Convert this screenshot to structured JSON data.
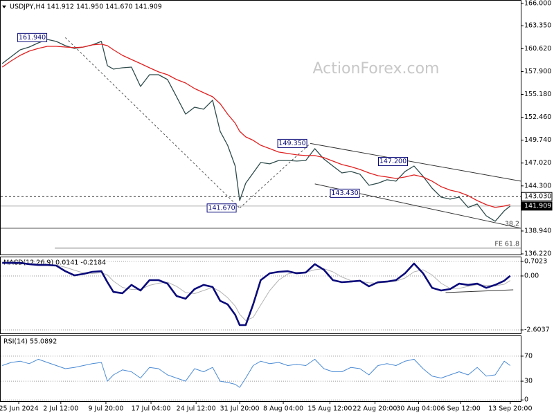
{
  "chart_data": [
    {
      "type": "line",
      "title": "USDJPY,H4  141.912 141.950 141.670 141.909",
      "watermark": "ActionForex.com",
      "x": [
        1,
        7,
        13,
        19,
        25,
        31,
        37,
        43,
        49,
        55,
        61,
        67,
        71,
        75,
        81,
        87,
        93,
        99,
        105,
        111,
        117,
        123,
        129,
        135,
        141,
        146,
        151,
        156,
        159,
        163,
        168,
        173,
        179,
        185,
        191,
        197,
        203,
        209,
        215,
        221,
        227,
        233,
        239,
        245,
        251,
        257,
        263,
        269,
        275,
        281,
        287,
        293,
        299,
        305,
        311,
        317,
        323,
        329,
        335,
        339
      ],
      "xlim": [
        0,
        346
      ],
      "ylim": [
        136.14,
        166.41
      ],
      "yticks": [
        {
          "value": 166,
          "label": "166.000"
        },
        {
          "value": 163.35,
          "label": "163.350"
        },
        {
          "value": 160.62,
          "label": "160.620"
        },
        {
          "value": 157.9,
          "label": "157.900"
        },
        {
          "value": 155.18,
          "label": "155.180"
        },
        {
          "value": 152.46,
          "label": "152.460"
        },
        {
          "value": 149.74,
          "label": "149.740"
        },
        {
          "value": 147.02,
          "label": "147.020"
        },
        {
          "value": 144.3,
          "label": "144.300"
        },
        {
          "value": 138.94,
          "label": "138.940"
        },
        {
          "value": 136.22,
          "label": "136.220"
        }
      ],
      "series": [
        {
          "color": "#2e4a4a",
          "width": 1.3,
          "values": [
            158.85,
            159.67,
            160.49,
            160.82,
            161.31,
            161.72,
            161.48,
            160.98,
            160.65,
            160.82,
            161.07,
            161.48,
            158.6,
            158.19,
            158.35,
            158.43,
            156.13,
            157.53,
            157.53,
            156.95,
            154.9,
            152.84,
            153.66,
            153.42,
            154.49,
            150.79,
            149.14,
            146.67,
            142.56,
            144.62,
            145.85,
            147.09,
            146.92,
            147.33,
            147.33,
            147.25,
            147.33,
            148.73,
            147.5,
            146.67,
            145.85,
            146.02,
            145.69,
            144.37,
            144.62,
            145.03,
            144.87,
            146.02,
            146.67,
            145.44,
            144.04,
            142.97,
            142.73,
            142.97,
            141.74,
            142.15,
            140.75,
            140.1,
            141.33,
            141.91
          ]
        },
        {
          "color": "#e02020",
          "width": 1.3,
          "values": [
            158.43,
            159.17,
            159.83,
            160.33,
            160.65,
            160.9,
            160.9,
            160.82,
            160.74,
            160.82,
            161.07,
            161.15,
            160.98,
            160.49,
            159.83,
            159.34,
            158.85,
            158.35,
            157.86,
            157.53,
            156.95,
            156.54,
            155.88,
            155.39,
            154.9,
            154.08,
            152.84,
            151.77,
            150.79,
            150.13,
            149.72,
            149.14,
            148.73,
            148.32,
            148.16,
            147.99,
            147.91,
            147.91,
            147.66,
            147.25,
            146.84,
            146.59,
            146.26,
            145.85,
            145.52,
            145.36,
            145.19,
            145.36,
            145.61,
            145.36,
            144.87,
            144.21,
            143.8,
            143.55,
            143.14,
            142.56,
            142.07,
            141.74,
            141.91,
            142.07
          ]
        }
      ],
      "annotations": [
        {
          "x": 21,
          "value": 161.94,
          "label": "161.940"
        },
        {
          "x": 147,
          "value": 141.67,
          "label": "141.670"
        },
        {
          "x": 194,
          "value": 149.35,
          "label": "149.350"
        },
        {
          "x": 261,
          "value": 147.2,
          "label": "147.200"
        },
        {
          "x": 229,
          "value": 143.43,
          "label": "143.430"
        }
      ],
      "levels": [
        {
          "value": 143.03,
          "label": "143.030",
          "tag": "box",
          "dash": true,
          "color": "#333333"
        },
        {
          "value": 141.909,
          "label": "141.909",
          "tag": "dark",
          "color": "#b0b0b0"
        },
        {
          "value": 139.27,
          "label": "38.2",
          "color": "#555555"
        },
        {
          "from": 36,
          "value": 136.9,
          "label": "FE 61.8",
          "color": "#777777"
        }
      ],
      "trendlines": [
        {
          "x": [
            43,
            159
          ],
          "y": [
            161.94,
            141.67
          ],
          "dash": true
        },
        {
          "x": [
            159,
            206
          ],
          "y": [
            141.67,
            149.35
          ],
          "dash": true
        },
        {
          "x": [
            206,
            346
          ],
          "y": [
            149.35,
            144.87
          ]
        },
        {
          "x": [
            209,
            346
          ],
          "y": [
            144.54,
            139.27
          ]
        }
      ]
    },
    {
      "type": "line",
      "title": "MACD(12,26,9) 0.0141 -0.2184",
      "x": [
        1,
        7,
        13,
        19,
        25,
        31,
        37,
        43,
        49,
        55,
        61,
        67,
        71,
        75,
        81,
        87,
        93,
        99,
        105,
        111,
        117,
        123,
        129,
        135,
        141,
        146,
        151,
        156,
        159,
        163,
        168,
        173,
        179,
        185,
        191,
        197,
        203,
        209,
        215,
        221,
        227,
        233,
        239,
        245,
        251,
        257,
        263,
        269,
        275,
        281,
        287,
        293,
        299,
        305,
        311,
        317,
        323,
        329,
        335,
        339
      ],
      "xlim": [
        0,
        346
      ],
      "ylim": [
        -2.77,
        0.9
      ],
      "grid": true,
      "yticks": [
        0.7023,
        {
          "value": 0,
          "label": "0.00"
        },
        -2.6037
      ],
      "series": [
        {
          "color": "#b4b4b4",
          "width": 1,
          "values": [
            0.63,
            0.63,
            0.63,
            0.61,
            0.58,
            0.55,
            0.52,
            0.42,
            0.28,
            0.15,
            0.12,
            0.16,
            0.05,
            -0.25,
            -0.55,
            -0.65,
            -0.65,
            -0.45,
            -0.35,
            -0.3,
            -0.5,
            -0.8,
            -0.85,
            -0.7,
            -0.55,
            -0.75,
            -1.05,
            -1.45,
            -1.85,
            -2.15,
            -2.0,
            -1.4,
            -0.7,
            -0.2,
            0.1,
            0.18,
            0.18,
            0.3,
            0.35,
            0.2,
            -0.05,
            -0.22,
            -0.26,
            -0.33,
            -0.35,
            -0.3,
            -0.25,
            -0.1,
            0.2,
            0.3,
            0.05,
            -0.35,
            -0.6,
            -0.6,
            -0.5,
            -0.42,
            -0.45,
            -0.47,
            -0.4,
            -0.22
          ]
        },
        {
          "color": "#0a0a7a",
          "width": 2.6,
          "values": [
            0.63,
            0.63,
            0.63,
            0.57,
            0.53,
            0.53,
            0.5,
            0.23,
            0.03,
            0.1,
            0.2,
            0.23,
            -0.3,
            -0.77,
            -0.83,
            -0.43,
            -0.7,
            -0.2,
            -0.2,
            -0.37,
            -0.97,
            -1.1,
            -0.63,
            -0.43,
            -0.53,
            -1.2,
            -1.37,
            -1.87,
            -2.37,
            -2.37,
            -1.37,
            -0.2,
            0.13,
            0.2,
            0.23,
            0.13,
            0.17,
            0.57,
            0.3,
            -0.2,
            -0.3,
            -0.27,
            -0.23,
            -0.5,
            -0.3,
            -0.27,
            -0.2,
            0.13,
            0.6,
            0.13,
            -0.57,
            -0.7,
            -0.63,
            -0.37,
            -0.43,
            -0.37,
            -0.57,
            -0.43,
            -0.23,
            0.01
          ]
        }
      ],
      "trendlines": [
        {
          "x": [
            296,
            341
          ],
          "y": [
            -0.8,
            -0.67
          ]
        }
      ]
    },
    {
      "type": "line",
      "title": "RSI(14) 55.0892",
      "x": [
        1,
        7,
        13,
        19,
        25,
        31,
        37,
        43,
        49,
        55,
        61,
        67,
        71,
        75,
        81,
        87,
        93,
        99,
        105,
        111,
        117,
        123,
        129,
        135,
        141,
        146,
        151,
        156,
        159,
        163,
        168,
        173,
        179,
        185,
        191,
        197,
        203,
        209,
        215,
        221,
        227,
        233,
        239,
        245,
        251,
        257,
        263,
        269,
        275,
        281,
        287,
        293,
        299,
        305,
        311,
        317,
        323,
        329,
        335,
        339
      ],
      "xlim": [
        0,
        346
      ],
      "ylim": [
        -2,
        102
      ],
      "grid": true,
      "yticks": [
        70,
        30,
        0
      ],
      "xticks": [
        {
          "value": 12,
          "label": "25 Jun 2024"
        },
        {
          "value": 40,
          "label": "2 Jul 12:00"
        },
        {
          "value": 70,
          "label": "9 Jul 20:00"
        },
        {
          "value": 100,
          "label": "17 Jul 04:00"
        },
        {
          "value": 130,
          "label": "24 Jul 12:00"
        },
        {
          "value": 159,
          "label": "31 Jul 20:00"
        },
        {
          "value": 188,
          "label": "8 Aug 04:00"
        },
        {
          "value": 219,
          "label": "15 Aug 12:00"
        },
        {
          "value": 249,
          "label": "22 Aug 20:00"
        },
        {
          "value": 278,
          "label": "30 Aug 04:00"
        },
        {
          "value": 306,
          "label": "6 Sep 12:00"
        },
        {
          "value": 339,
          "label": "13 Sep 20:00"
        }
      ],
      "series": [
        {
          "color": "#4a8ad4",
          "width": 1,
          "values": [
            55,
            60,
            62,
            58,
            65,
            60,
            55,
            50,
            52,
            55,
            58,
            60,
            30,
            40,
            48,
            45,
            35,
            52,
            50,
            40,
            35,
            30,
            50,
            45,
            52,
            30,
            28,
            25,
            20,
            35,
            55,
            62,
            58,
            60,
            55,
            57,
            55,
            65,
            50,
            45,
            45,
            52,
            50,
            40,
            55,
            58,
            55,
            62,
            65,
            50,
            38,
            35,
            40,
            45,
            40,
            52,
            38,
            40,
            62,
            55
          ]
        }
      ]
    }
  ]
}
